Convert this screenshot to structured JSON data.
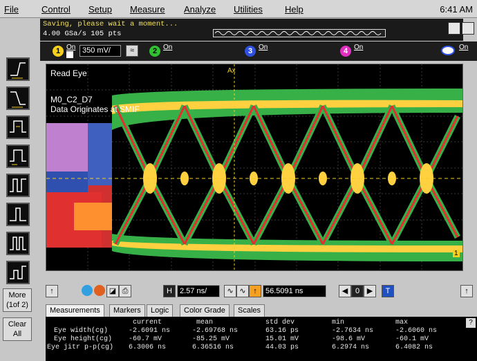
{
  "menu": {
    "items": [
      "File",
      "Control",
      "Setup",
      "Measure",
      "Analyze",
      "Utilities",
      "Help"
    ],
    "clock": "6:41 AM"
  },
  "status": {
    "message": "Saving, please wait a moment...",
    "rate": "4.00 GSa/s   105 pts"
  },
  "channels": {
    "ch1": {
      "num": "1",
      "on": "On",
      "scale": "350 mV/",
      "color": "#f5d020"
    },
    "ch2": {
      "num": "2",
      "on": "On",
      "color": "#30c030"
    },
    "ch3": {
      "num": "3",
      "on": "On",
      "color": "#3050e0"
    },
    "ch4": {
      "num": "4",
      "on": "On",
      "color": "#e030c0"
    },
    "eye": {
      "on": "On"
    }
  },
  "display": {
    "title": "Read Eye",
    "line1": "M0_C2_D7",
    "line2": "Data Originates at SMIF",
    "marker_ax": "Ax",
    "marker_1": "1"
  },
  "sidebar": {
    "more": "More\n(1of 2)",
    "more_line1": "More",
    "more_line2": "(1of 2)",
    "clear_line1": "Clear",
    "clear_line2": "All"
  },
  "timebase": {
    "h_label": "H",
    "h_value": "2.57 ns/",
    "delay_value": "56.5091 ns",
    "t_label": "T",
    "nav": "0"
  },
  "tabs": [
    "Measurements",
    "Markers",
    "Logic",
    "Color Grade",
    "Scales"
  ],
  "measurements": {
    "headers": [
      "current",
      "mean",
      "std dev",
      "min",
      "max"
    ],
    "rows": [
      {
        "name": "Eye width(cg)",
        "values": [
          "-2.6091 ns",
          "-2.69768 ns",
          "63.16 ps",
          "-2.7634 ns",
          "-2.6060 ns"
        ]
      },
      {
        "name": "Eye height(cg)",
        "values": [
          "-60.7 mV",
          "-85.25 mV",
          "15.01 mV",
          "-98.6 mV",
          "-60.1 mV"
        ]
      },
      {
        "name": "Eye jitr p-p(cg)",
        "values": [
          "6.3006 ns",
          "6.36516 ns",
          "44.03 ps",
          "6.2974 ns",
          "6.4082 ns"
        ]
      }
    ],
    "help": "?"
  }
}
